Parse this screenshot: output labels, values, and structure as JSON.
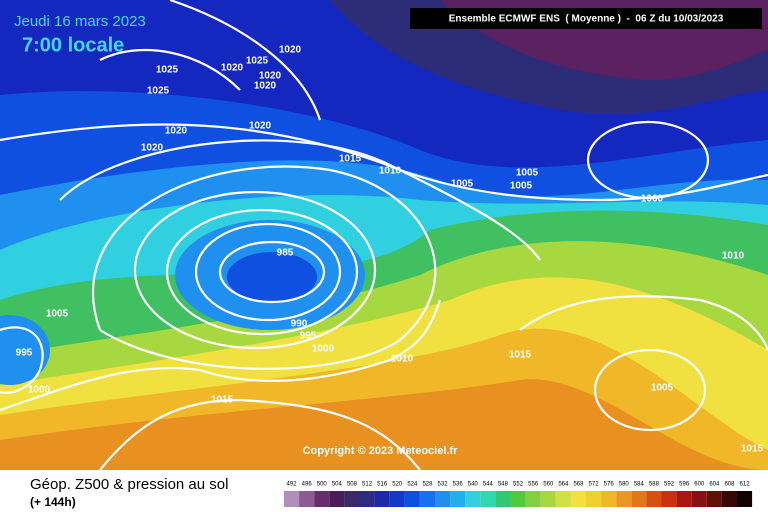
{
  "header": {
    "date": "Jeudi 16 mars 2023",
    "time": "7:00 locale",
    "model": "Ensemble ECMWF ENS  ( Moyenne )  -  06 Z du 10/03/2023"
  },
  "isobar_labels": [
    1025,
    1025,
    1020,
    1020,
    1020,
    1025,
    1020,
    1020,
    1020,
    1020,
    1015,
    1010,
    1005,
    1005,
    1005,
    1000,
    985,
    990,
    995,
    1000,
    1005,
    995,
    1000,
    1010,
    1015,
    1015,
    1010,
    1005,
    1015
  ],
  "copyright": "Copyright © 2023 Meteociel.fr",
  "footer": {
    "title": "Géop. Z500 & pression au sol",
    "lead": "(+ 144h)"
  },
  "legend": {
    "values": [
      492,
      496,
      500,
      504,
      508,
      512,
      516,
      520,
      524,
      528,
      532,
      536,
      540,
      544,
      548,
      552,
      556,
      560,
      564,
      568,
      572,
      576,
      580,
      584,
      588,
      592,
      596,
      600,
      604,
      608,
      612
    ],
    "colors": [
      "#b090b8",
      "#8c5a94",
      "#6a2c6e",
      "#4a1c5a",
      "#3a2a6a",
      "#2c2c80",
      "#1c2aa8",
      "#1438c8",
      "#1050e0",
      "#1870f0",
      "#2090f0",
      "#20b0f0",
      "#30d0e0",
      "#30d8b0",
      "#30c870",
      "#50c840",
      "#80d040",
      "#a8d840",
      "#d0e040",
      "#f0e040",
      "#f0d030",
      "#f0b828",
      "#e89820",
      "#e07818",
      "#d85010",
      "#c83010",
      "#a81810",
      "#881010",
      "#601008",
      "#380808",
      "#100000"
    ]
  }
}
